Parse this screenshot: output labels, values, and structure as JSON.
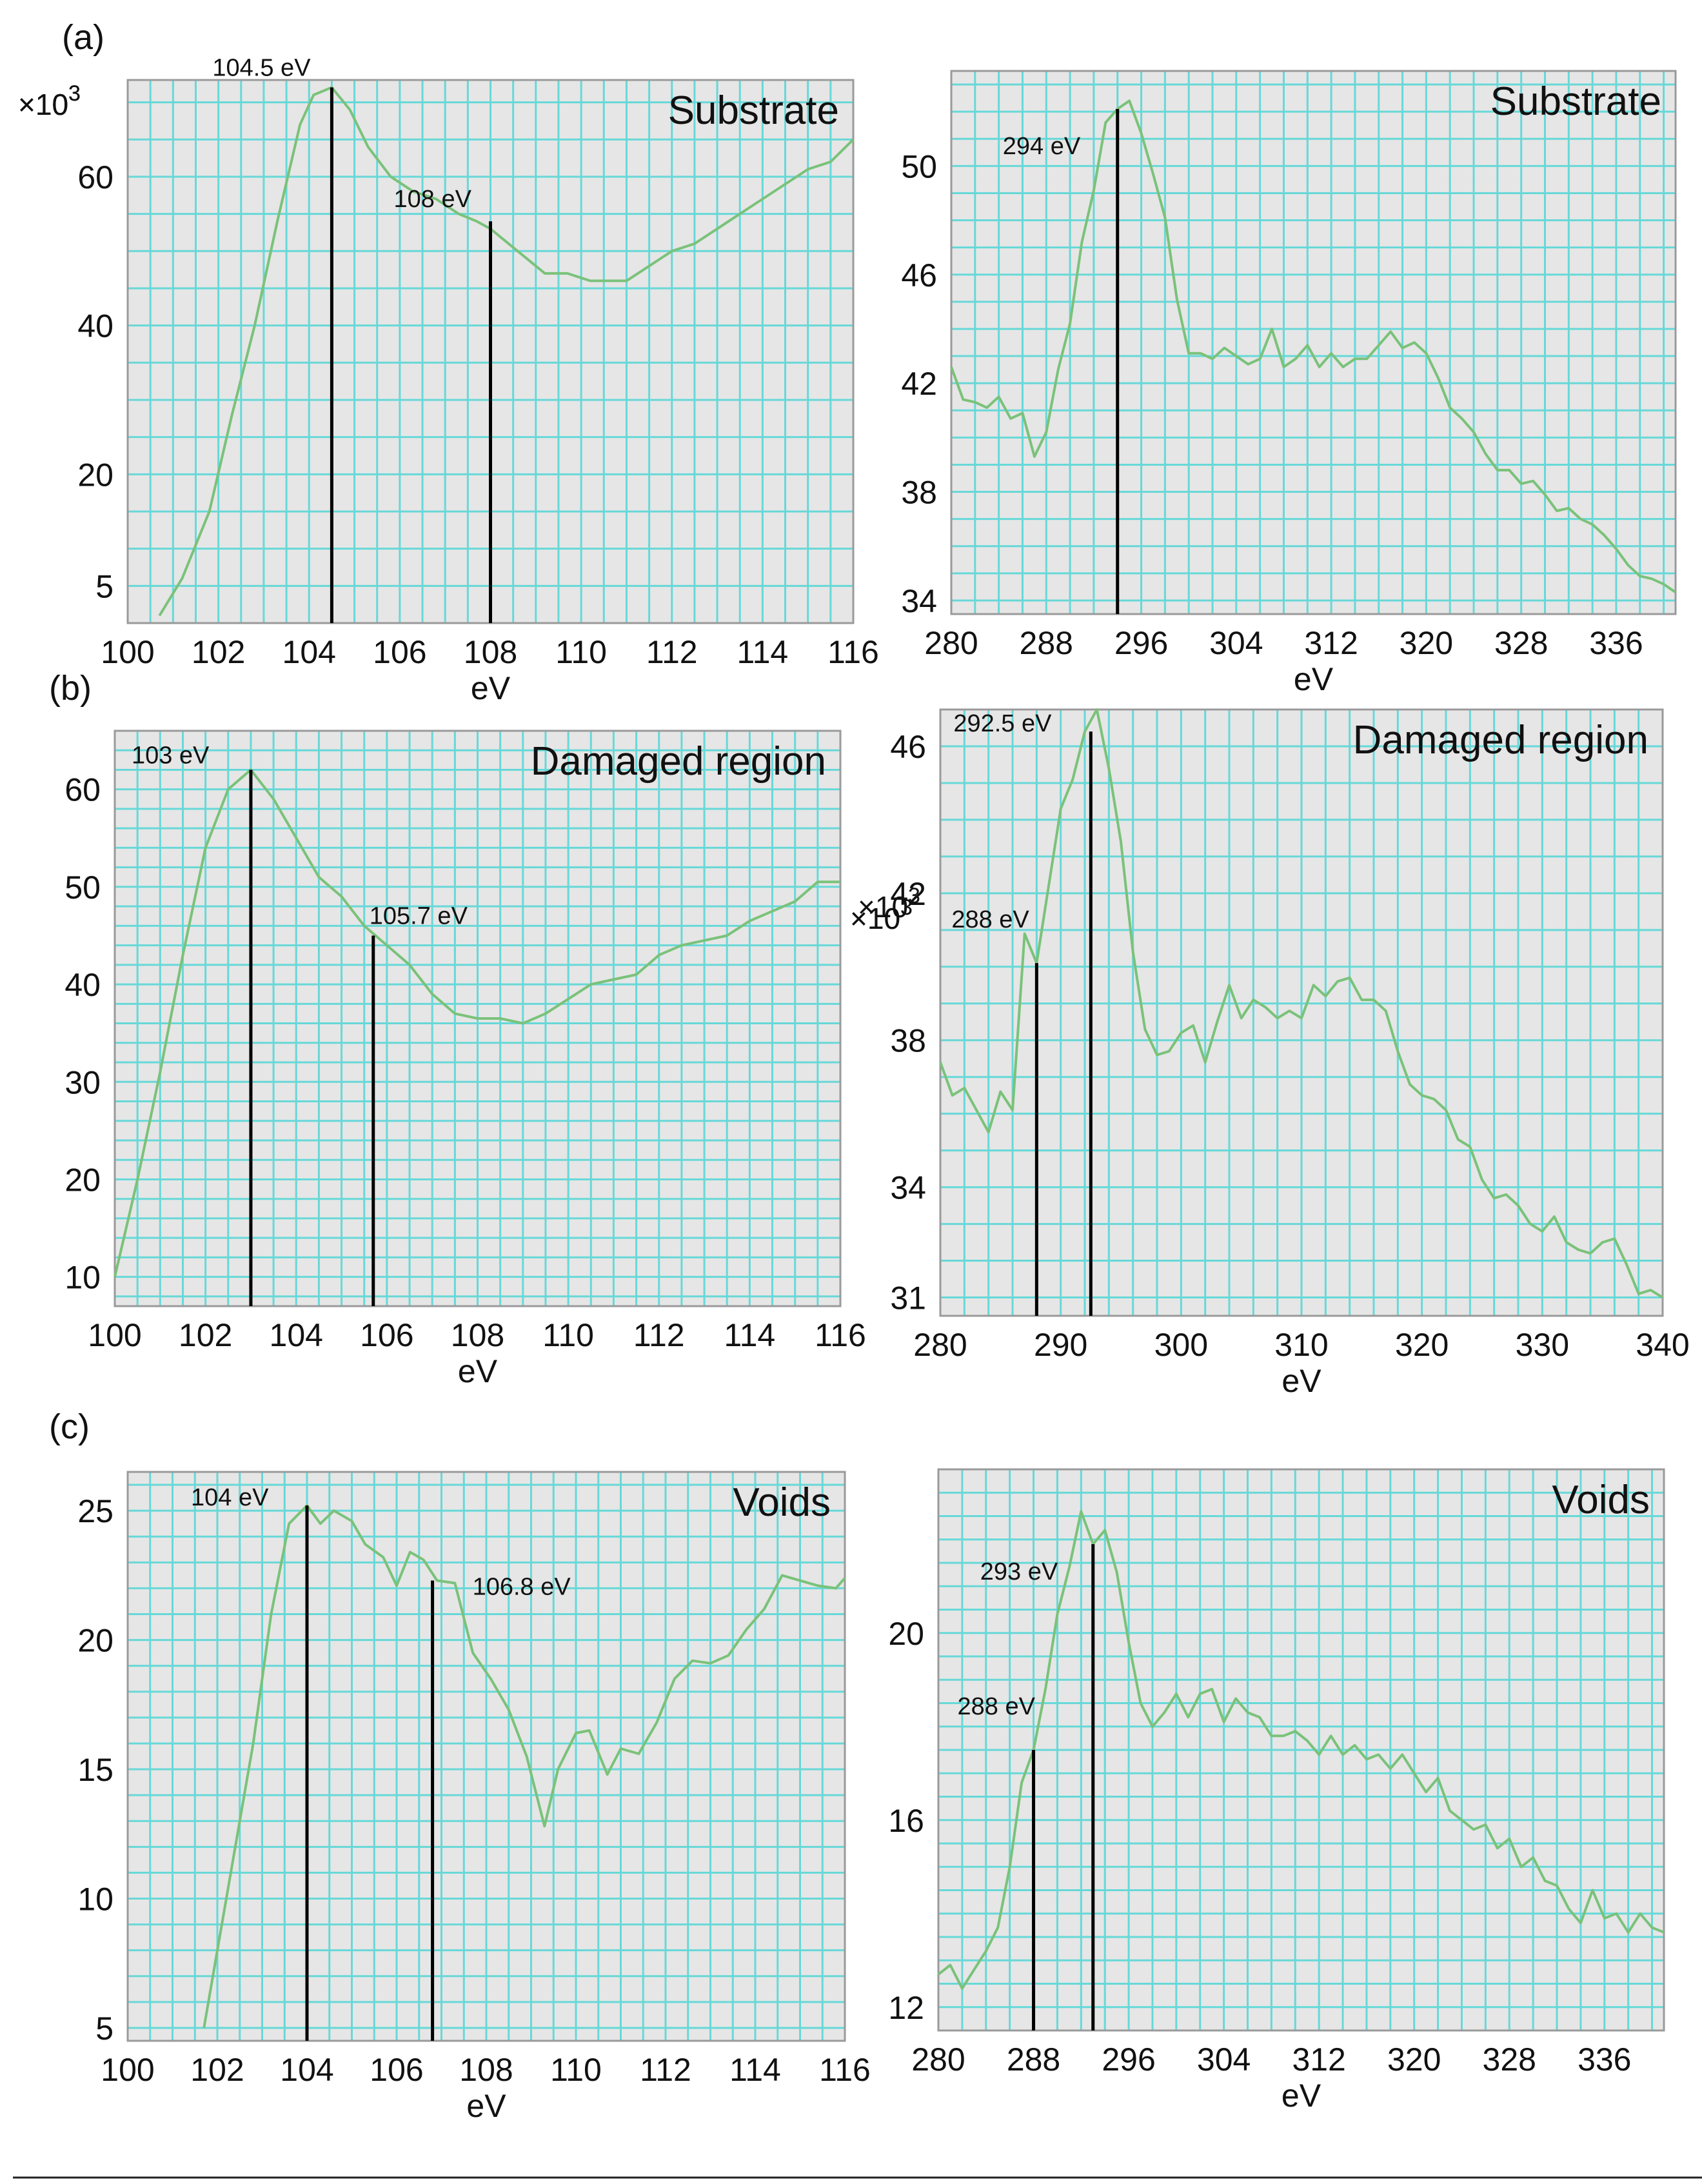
{
  "figure": {
    "panel_labels": [
      "(a)",
      "(b)",
      "(c)"
    ]
  },
  "chart_data": [
    {
      "type": "line",
      "panel": "(a)",
      "title": "Substrate",
      "xlabel": "eV",
      "ylabel": "",
      "multiplier": "×10^3",
      "xlim": [
        100,
        116
      ],
      "ylim": [
        0,
        73
      ],
      "xticks": [
        100,
        102,
        104,
        106,
        108,
        110,
        112,
        114,
        116
      ],
      "yticks": [
        5,
        20,
        40,
        60
      ],
      "series": [
        {
          "name": "Substrate spectrum",
          "x": [
            100.7,
            101.2,
            101.8,
            102.3,
            102.8,
            103.3,
            103.8,
            104.1,
            104.5,
            104.9,
            105.3,
            105.8,
            106.3,
            106.8,
            107.3,
            107.7,
            108.0,
            108.4,
            108.8,
            109.2,
            109.7,
            110.2,
            110.6,
            111.0,
            111.5,
            112.0,
            112.5,
            113.0,
            113.5,
            114.0,
            114.5,
            115.0,
            115.5,
            116.0
          ],
          "y": [
            1,
            6,
            15,
            28,
            40,
            54,
            67,
            71,
            72,
            69,
            64,
            60,
            58,
            57,
            55,
            54,
            53,
            51,
            49,
            47,
            47,
            46,
            46,
            46,
            48,
            50,
            51,
            53,
            55,
            57,
            59,
            61,
            62,
            65
          ]
        }
      ],
      "annotations": [
        {
          "text": "104.5 eV",
          "x": 104.5,
          "y": 72
        },
        {
          "text": "108 eV",
          "x": 108,
          "y": 54
        }
      ]
    },
    {
      "type": "line",
      "panel": "(a)",
      "title": "Substrate",
      "xlabel": "eV",
      "ylabel": "",
      "multiplier": "×10^3",
      "xlim": [
        280,
        341
      ],
      "ylim": [
        33.5,
        53.5
      ],
      "xticks": [
        280,
        288,
        296,
        304,
        312,
        320,
        328,
        336
      ],
      "yticks": [
        34,
        38,
        42,
        46,
        50
      ],
      "series": [
        {
          "name": "Substrate spectrum",
          "x": [
            280,
            281,
            282,
            283,
            284,
            285,
            286,
            287,
            288,
            289,
            290,
            291,
            292,
            293,
            294,
            295,
            296,
            297,
            298,
            299,
            300,
            301,
            302,
            303,
            304,
            305,
            306,
            307,
            308,
            309,
            310,
            311,
            312,
            313,
            314,
            315,
            316,
            317,
            318,
            319,
            320,
            321,
            322,
            323,
            324,
            325,
            326,
            327,
            328,
            329,
            330,
            331,
            332,
            333,
            334,
            335,
            336,
            337,
            338,
            339,
            340,
            341
          ],
          "y": [
            42.6,
            41.4,
            41.3,
            41.1,
            41.5,
            40.7,
            40.9,
            39.3,
            40.2,
            42.5,
            44.2,
            47.2,
            49.1,
            51.6,
            52.1,
            52.4,
            51.2,
            49.7,
            48.1,
            45.1,
            43.1,
            43.1,
            42.9,
            43.3,
            43.0,
            42.7,
            42.9,
            44.0,
            42.6,
            42.9,
            43.4,
            42.6,
            43.1,
            42.6,
            42.9,
            42.9,
            43.4,
            43.9,
            43.3,
            43.5,
            43.1,
            42.2,
            41.1,
            40.7,
            40.2,
            39.4,
            38.8,
            38.8,
            38.3,
            38.4,
            37.9,
            37.3,
            37.4,
            37.0,
            36.8,
            36.4,
            35.9,
            35.3,
            34.9,
            34.8,
            34.6,
            34.3
          ]
        }
      ],
      "annotations": [
        {
          "text": "294 eV",
          "x": 294,
          "y": 52.1
        }
      ]
    },
    {
      "type": "line",
      "panel": "(b)",
      "title": "Damaged region",
      "xlabel": "eV",
      "ylabel": "",
      "multiplier": "×10^3",
      "xlim": [
        100,
        116
      ],
      "ylim": [
        7,
        66
      ],
      "xticks": [
        100,
        102,
        104,
        106,
        108,
        110,
        112,
        114,
        116
      ],
      "yticks": [
        10,
        20,
        30,
        40,
        50,
        60
      ],
      "series": [
        {
          "name": "Damaged region spectrum",
          "x": [
            100.0,
            100.5,
            101.0,
            101.5,
            102.0,
            102.5,
            103.0,
            103.5,
            104.0,
            104.5,
            105.0,
            105.5,
            106.0,
            106.5,
            107.0,
            107.5,
            108.0,
            108.5,
            109.0,
            109.5,
            110.0,
            110.5,
            111.0,
            111.5,
            112.0,
            112.5,
            113.0,
            113.5,
            114.0,
            114.5,
            115.0,
            115.5,
            116.0
          ],
          "y": [
            10,
            20,
            31,
            43,
            54,
            60,
            62,
            59,
            55,
            51,
            49,
            46,
            44,
            42,
            39,
            37,
            36.5,
            36.5,
            36,
            37,
            38.5,
            40,
            40.5,
            41,
            43,
            44,
            44.5,
            45,
            46.5,
            47.5,
            48.5,
            50.5,
            50.5
          ]
        }
      ],
      "annotations": [
        {
          "text": "103 eV",
          "x": 103,
          "y": 62
        },
        {
          "text": "105.7 eV",
          "x": 105.7,
          "y": 45
        }
      ]
    },
    {
      "type": "line",
      "panel": "(b)",
      "title": "Damaged region",
      "xlabel": "eV",
      "ylabel": "",
      "multiplier": "×10^3",
      "xlim": [
        280,
        340
      ],
      "ylim": [
        30.5,
        47
      ],
      "xticks": [
        280,
        290,
        300,
        310,
        320,
        330,
        340
      ],
      "yticks": [
        31,
        34,
        38,
        42,
        46
      ],
      "series": [
        {
          "name": "Damaged region spectrum",
          "x": [
            280,
            281,
            282,
            283,
            284,
            285,
            286,
            287,
            288,
            289,
            290,
            291,
            292,
            293,
            294,
            295,
            296,
            297,
            298,
            299,
            300,
            301,
            302,
            303,
            304,
            305,
            306,
            307,
            308,
            309,
            310,
            311,
            312,
            313,
            314,
            315,
            316,
            317,
            318,
            319,
            320,
            321,
            322,
            323,
            324,
            325,
            326,
            327,
            328,
            329,
            330,
            331,
            332,
            333,
            334,
            335,
            336,
            337,
            338,
            339,
            340
          ],
          "y": [
            37.4,
            36.5,
            36.7,
            36.1,
            35.5,
            36.6,
            36.1,
            40.9,
            40.1,
            42.2,
            44.3,
            45.1,
            46.4,
            47.0,
            45.4,
            43.4,
            40.4,
            38.3,
            37.6,
            37.7,
            38.2,
            38.4,
            37.4,
            38.5,
            39.5,
            38.6,
            39.1,
            38.9,
            38.6,
            38.8,
            38.6,
            39.5,
            39.2,
            39.6,
            39.7,
            39.1,
            39.1,
            38.8,
            37.7,
            36.8,
            36.5,
            36.4,
            36.1,
            35.3,
            35.1,
            34.2,
            33.7,
            33.8,
            33.5,
            33.0,
            32.8,
            33.2,
            32.5,
            32.3,
            32.2,
            32.5,
            32.6,
            31.9,
            31.1,
            31.2,
            31.0
          ]
        }
      ],
      "annotations": [
        {
          "text": "292.5 eV",
          "x": 292.5,
          "y": 46.4
        },
        {
          "text": "288 eV",
          "x": 288,
          "y": 40.1
        }
      ]
    },
    {
      "type": "line",
      "panel": "(c)",
      "title": "Voids",
      "xlabel": "eV",
      "ylabel": "",
      "multiplier": "×10^3",
      "xlim": [
        100,
        116
      ],
      "ylim": [
        4.5,
        26.5
      ],
      "xticks": [
        100,
        102,
        104,
        106,
        108,
        110,
        112,
        114,
        116
      ],
      "yticks": [
        5,
        10,
        15,
        20,
        25
      ],
      "series": [
        {
          "name": "Voids spectrum",
          "x": [
            101.7,
            102.0,
            102.4,
            102.8,
            103.2,
            103.6,
            104.0,
            104.3,
            104.6,
            105.0,
            105.3,
            105.7,
            106.0,
            106.3,
            106.6,
            106.9,
            107.3,
            107.7,
            108.1,
            108.5,
            108.9,
            109.3,
            109.6,
            110.0,
            110.3,
            110.7,
            111.0,
            111.4,
            111.8,
            112.2,
            112.6,
            113.0,
            113.4,
            113.8,
            114.2,
            114.6,
            115.0,
            115.4,
            115.8,
            116.0
          ],
          "y": [
            5,
            8,
            12,
            16,
            21,
            24.5,
            25.2,
            24.5,
            25,
            24.6,
            23.7,
            23.2,
            22.1,
            23.4,
            23.1,
            22.3,
            22.2,
            19.5,
            18.5,
            17.3,
            15.5,
            12.8,
            15,
            16.4,
            16.5,
            14.8,
            15.8,
            15.6,
            16.8,
            18.5,
            19.2,
            19.1,
            19.4,
            20.4,
            21.2,
            22.5,
            22.3,
            22.1,
            22.0,
            22.4
          ]
        }
      ],
      "annotations": [
        {
          "text": "104 eV",
          "x": 104,
          "y": 25.2
        },
        {
          "text": "106.8 eV",
          "x": 106.8,
          "y": 22.3
        }
      ]
    },
    {
      "type": "line",
      "panel": "(c)",
      "title": "Voids",
      "xlabel": "eV",
      "ylabel": "",
      "multiplier": "×10^3",
      "xlim": [
        280,
        341
      ],
      "ylim": [
        11.5,
        23.5
      ],
      "xticks": [
        280,
        288,
        296,
        304,
        312,
        320,
        328,
        336
      ],
      "yticks": [
        12,
        16,
        20
      ],
      "series": [
        {
          "name": "Voids spectrum",
          "x": [
            280,
            281,
            282,
            283,
            284,
            285,
            286,
            287,
            288,
            289,
            290,
            291,
            292,
            293,
            294,
            295,
            296,
            297,
            298,
            299,
            300,
            301,
            302,
            303,
            304,
            305,
            306,
            307,
            308,
            309,
            310,
            311,
            312,
            313,
            314,
            315,
            316,
            317,
            318,
            319,
            320,
            321,
            322,
            323,
            324,
            325,
            326,
            327,
            328,
            329,
            330,
            331,
            332,
            333,
            334,
            335,
            336,
            337,
            338,
            339,
            340,
            341
          ],
          "y": [
            12.7,
            12.9,
            12.4,
            12.8,
            13.2,
            13.7,
            15.0,
            16.8,
            17.5,
            18.8,
            20.4,
            21.4,
            22.6,
            21.9,
            22.2,
            21.3,
            19.8,
            18.5,
            18.0,
            18.3,
            18.7,
            18.2,
            18.7,
            18.8,
            18.1,
            18.6,
            18.3,
            18.2,
            17.8,
            17.8,
            17.9,
            17.7,
            17.4,
            17.8,
            17.4,
            17.6,
            17.3,
            17.4,
            17.1,
            17.4,
            17.0,
            16.6,
            16.9,
            16.2,
            16.0,
            15.8,
            15.9,
            15.4,
            15.6,
            15.0,
            15.2,
            14.7,
            14.6,
            14.1,
            13.8,
            14.5,
            13.9,
            14.0,
            13.6,
            14.0,
            13.7,
            13.6
          ]
        }
      ],
      "annotations": [
        {
          "text": "293 eV",
          "x": 293,
          "y": 21.9
        },
        {
          "text": "288 eV",
          "x": 288,
          "y": 17.5
        }
      ]
    }
  ]
}
